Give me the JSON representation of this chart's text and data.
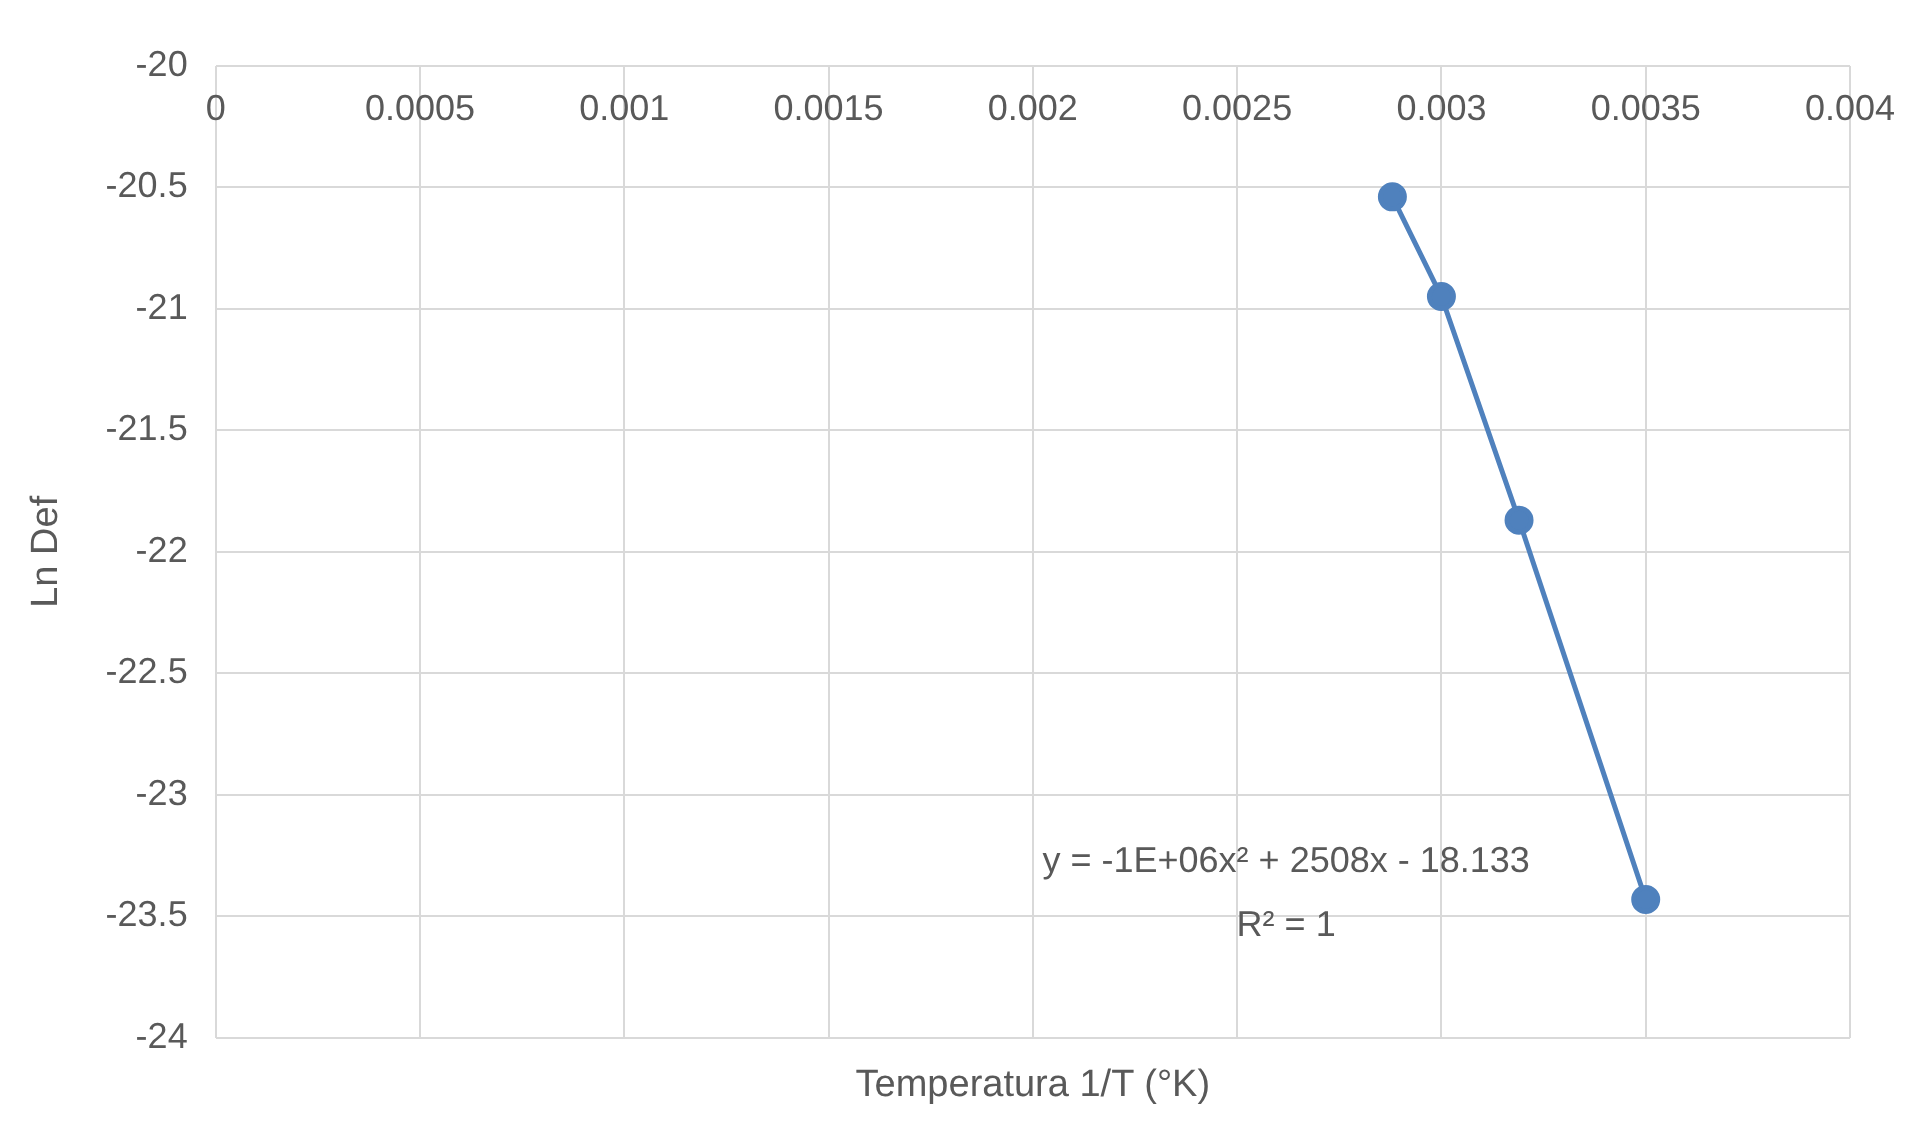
{
  "chart_data": {
    "type": "line",
    "xlabel": "Temperatura 1/T (°K)",
    "ylabel": "Ln Def",
    "x": [
      0.00288,
      0.003,
      0.00319,
      0.0035
    ],
    "series": [
      {
        "color": "#4f81bd",
        "values": [
          -20.54,
          -20.95,
          -21.87,
          -23.43
        ]
      }
    ],
    "xlim": [
      0,
      0.004
    ],
    "xticks": [
      0,
      0.0005,
      0.001,
      0.0015,
      0.002,
      0.0025,
      0.003,
      0.0035,
      0.004
    ],
    "ylim": [
      -24,
      -20
    ],
    "yticks": [
      -24,
      -23.5,
      -23,
      -22.5,
      -22,
      -21.5,
      -21,
      -20.5,
      -20
    ],
    "grid": true,
    "legend": false,
    "marker": "circle",
    "line_style": "solid",
    "annotations": [
      "y = -1E+06x² + 2508x - 18.133",
      "R² = 1"
    ]
  }
}
